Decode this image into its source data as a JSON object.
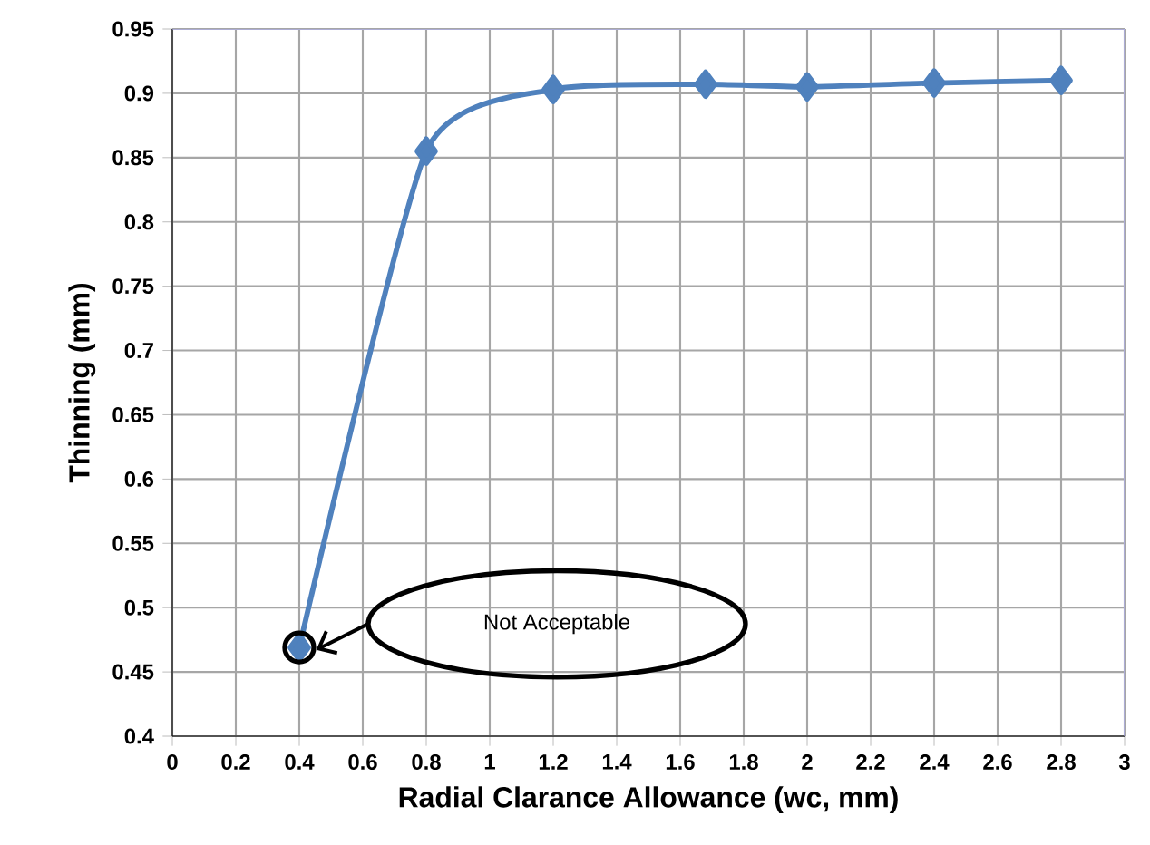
{
  "chart_data": {
    "type": "line",
    "xlabel": "Radial Clarance Allowance (wc, mm)",
    "ylabel": "Thinning  (mm)",
    "series": [
      {
        "color": "#4f81bd",
        "x": [
          0.4,
          0.8,
          1.2,
          1.68,
          2.0,
          2.4,
          2.8
        ],
        "values": [
          0.469,
          0.855,
          0.903,
          0.907,
          0.905,
          0.908,
          0.91
        ]
      }
    ],
    "xlim": [
      0,
      3
    ],
    "ylim": [
      0.4,
      0.95
    ],
    "xticks": [
      0,
      0.2,
      0.4,
      0.6,
      0.8,
      1,
      1.2,
      1.4,
      1.6,
      1.8,
      2,
      2.2,
      2.4,
      2.6,
      2.8,
      3
    ],
    "yticks": [
      0.4,
      0.45,
      0.5,
      0.55,
      0.6,
      0.65,
      0.7,
      0.75,
      0.8,
      0.85,
      0.9,
      0.95
    ],
    "grid": true,
    "marker": "diamond",
    "line_style": "solid",
    "annotations": [
      "Not Acceptable"
    ]
  }
}
